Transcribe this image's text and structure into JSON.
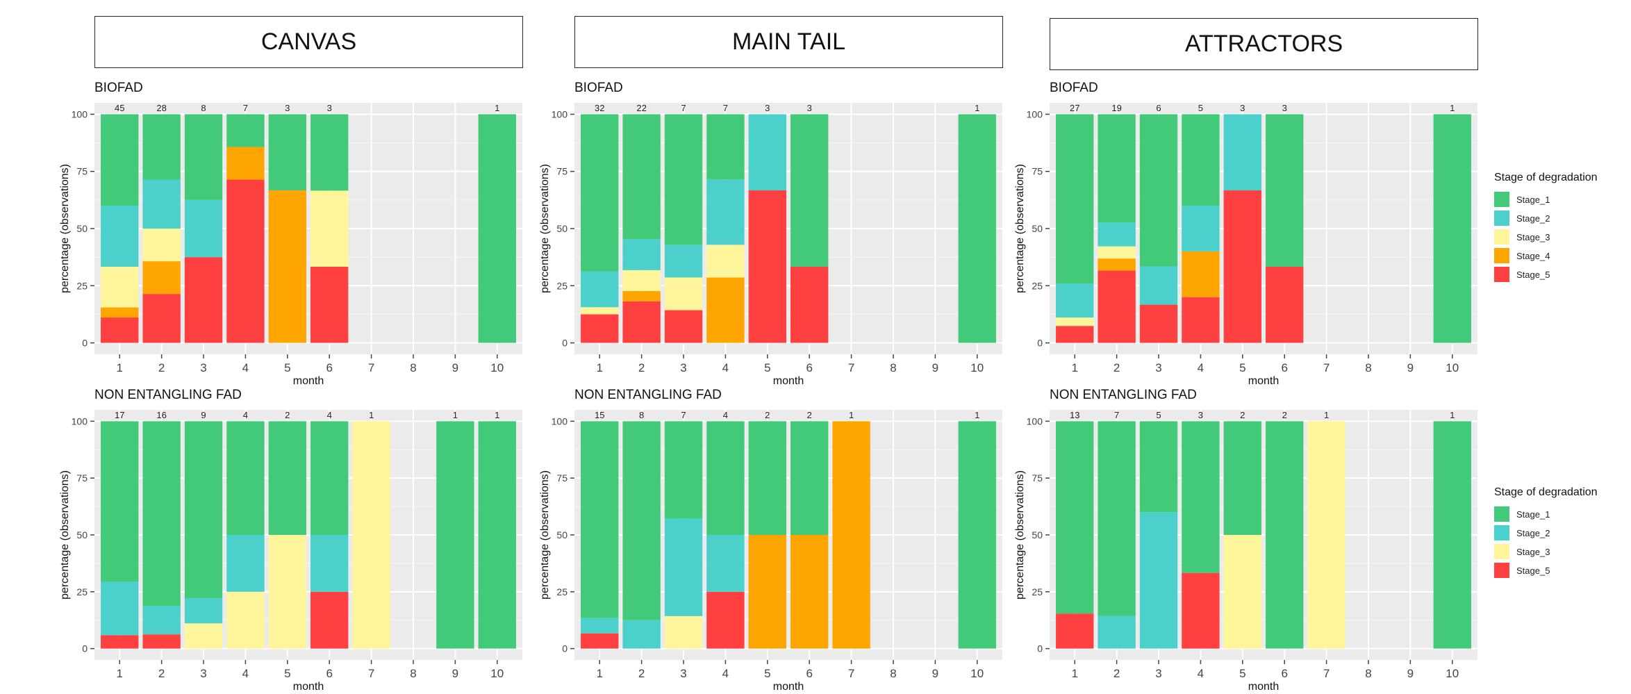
{
  "colors": {
    "Stage_1": "#43C97A",
    "Stage_2": "#4BD0CC",
    "Stage_3": "#FFF59A",
    "Stage_4": "#FFA500",
    "Stage_5": "#FF4040",
    "panel_bg": "#EBEBEB",
    "grid": "#FFFFFF"
  },
  "column_headers": [
    "CANVAS",
    "MAIN TAIL",
    "ATTRACTORS"
  ],
  "legend_top": {
    "title": "Stage of degradation",
    "items": [
      "Stage_1",
      "Stage_2",
      "Stage_3",
      "Stage_4",
      "Stage_5"
    ]
  },
  "legend_bottom": {
    "title": "Stage of degradation",
    "items": [
      "Stage_1",
      "Stage_2",
      "Stage_3",
      "Stage_5"
    ]
  },
  "chart_data": [
    {
      "type": "bar",
      "stacked": true,
      "column": "CANVAS",
      "title": "BIOFAD",
      "xlabel": "month",
      "ylabel": "percentage (observations)",
      "x_ticks": [
        1,
        2,
        3,
        4,
        5,
        6,
        7,
        8,
        9,
        10
      ],
      "y_ticks": [
        0,
        25,
        50,
        75,
        100
      ],
      "ylim": [
        0,
        100
      ],
      "stage_order": [
        "Stage_5",
        "Stage_4",
        "Stage_3",
        "Stage_2",
        "Stage_1"
      ],
      "bars": [
        {
          "month": 1,
          "count": "45",
          "values": {
            "Stage_5": 11.1,
            "Stage_4": 4.4,
            "Stage_3": 17.8,
            "Stage_2": 26.7,
            "Stage_1": 40.0
          }
        },
        {
          "month": 2,
          "count": "28",
          "values": {
            "Stage_5": 21.4,
            "Stage_4": 14.3,
            "Stage_3": 14.3,
            "Stage_2": 21.4,
            "Stage_1": 28.6
          }
        },
        {
          "month": 3,
          "count": "8",
          "values": {
            "Stage_5": 37.5,
            "Stage_2": 25.0,
            "Stage_1": 37.5
          }
        },
        {
          "month": 4,
          "count": "7",
          "values": {
            "Stage_5": 71.4,
            "Stage_4": 14.3,
            "Stage_1": 14.3
          }
        },
        {
          "month": 5,
          "count": "3",
          "values": {
            "Stage_4": 66.7,
            "Stage_1": 33.3
          }
        },
        {
          "month": 6,
          "count": "3",
          "values": {
            "Stage_5": 33.3,
            "Stage_3": 33.3,
            "Stage_1": 33.4
          }
        },
        {
          "month": 10,
          "count": "1",
          "values": {
            "Stage_1": 100
          }
        }
      ]
    },
    {
      "type": "bar",
      "stacked": true,
      "column": "MAIN TAIL",
      "title": "BIOFAD",
      "xlabel": "month",
      "ylabel": "percentage (observations)",
      "x_ticks": [
        1,
        2,
        3,
        4,
        5,
        6,
        7,
        8,
        9,
        10
      ],
      "y_ticks": [
        0,
        25,
        50,
        75,
        100
      ],
      "ylim": [
        0,
        100
      ],
      "stage_order": [
        "Stage_5",
        "Stage_4",
        "Stage_3",
        "Stage_2",
        "Stage_1"
      ],
      "bars": [
        {
          "month": 1,
          "count": "32",
          "values": {
            "Stage_5": 12.5,
            "Stage_3": 3.1,
            "Stage_2": 15.6,
            "Stage_1": 68.8
          }
        },
        {
          "month": 2,
          "count": "22",
          "values": {
            "Stage_5": 18.2,
            "Stage_4": 4.5,
            "Stage_3": 9.1,
            "Stage_2": 13.6,
            "Stage_1": 54.6
          }
        },
        {
          "month": 3,
          "count": "7",
          "values": {
            "Stage_5": 14.3,
            "Stage_3": 14.3,
            "Stage_2": 14.3,
            "Stage_1": 57.1
          }
        },
        {
          "month": 4,
          "count": "7",
          "values": {
            "Stage_4": 28.6,
            "Stage_3": 14.3,
            "Stage_2": 28.6,
            "Stage_1": 28.5
          }
        },
        {
          "month": 5,
          "count": "3",
          "values": {
            "Stage_5": 66.7,
            "Stage_2": 33.3
          }
        },
        {
          "month": 6,
          "count": "3",
          "values": {
            "Stage_5": 33.3,
            "Stage_1": 66.7
          }
        },
        {
          "month": 10,
          "count": "1",
          "values": {
            "Stage_1": 100
          }
        }
      ]
    },
    {
      "type": "bar",
      "stacked": true,
      "column": "ATTRACTORS",
      "title": "BIOFAD",
      "xlabel": "month",
      "ylabel": "percentage (observations)",
      "x_ticks": [
        1,
        2,
        3,
        4,
        5,
        6,
        7,
        8,
        9,
        10
      ],
      "y_ticks": [
        0,
        25,
        50,
        75,
        100
      ],
      "ylim": [
        0,
        100
      ],
      "stage_order": [
        "Stage_5",
        "Stage_4",
        "Stage_3",
        "Stage_2",
        "Stage_1"
      ],
      "bars": [
        {
          "month": 1,
          "count": "27",
          "values": {
            "Stage_5": 7.4,
            "Stage_3": 3.7,
            "Stage_2": 14.8,
            "Stage_1": 74.1
          }
        },
        {
          "month": 2,
          "count": "19",
          "values": {
            "Stage_5": 31.6,
            "Stage_4": 5.3,
            "Stage_3": 5.3,
            "Stage_2": 10.5,
            "Stage_1": 47.3
          }
        },
        {
          "month": 3,
          "count": "6",
          "values": {
            "Stage_5": 16.7,
            "Stage_2": 16.7,
            "Stage_1": 66.6
          }
        },
        {
          "month": 4,
          "count": "5",
          "values": {
            "Stage_5": 20.0,
            "Stage_4": 20.0,
            "Stage_2": 20.0,
            "Stage_1": 40.0
          }
        },
        {
          "month": 5,
          "count": "3",
          "values": {
            "Stage_5": 66.7,
            "Stage_2": 33.3
          }
        },
        {
          "month": 6,
          "count": "3",
          "values": {
            "Stage_5": 33.3,
            "Stage_1": 66.7
          }
        },
        {
          "month": 10,
          "count": "1",
          "values": {
            "Stage_1": 100
          }
        }
      ]
    },
    {
      "type": "bar",
      "stacked": true,
      "column": "CANVAS",
      "title": "NON ENTANGLING FAD",
      "xlabel": "month",
      "ylabel": "percentage (observations)",
      "x_ticks": [
        1,
        2,
        3,
        4,
        5,
        6,
        7,
        8,
        9,
        10
      ],
      "y_ticks": [
        0,
        25,
        50,
        75,
        100
      ],
      "ylim": [
        0,
        100
      ],
      "stage_order": [
        "Stage_5",
        "Stage_4",
        "Stage_3",
        "Stage_2",
        "Stage_1"
      ],
      "bars": [
        {
          "month": 1,
          "count": "17",
          "values": {
            "Stage_5": 5.9,
            "Stage_2": 23.5,
            "Stage_1": 70.6
          }
        },
        {
          "month": 2,
          "count": "16",
          "values": {
            "Stage_5": 6.25,
            "Stage_2": 12.5,
            "Stage_1": 81.25
          }
        },
        {
          "month": 3,
          "count": "9",
          "values": {
            "Stage_3": 11.1,
            "Stage_2": 11.1,
            "Stage_1": 77.8
          }
        },
        {
          "month": 4,
          "count": "4",
          "values": {
            "Stage_3": 25.0,
            "Stage_2": 25.0,
            "Stage_1": 50.0
          }
        },
        {
          "month": 5,
          "count": "2",
          "values": {
            "Stage_3": 50.0,
            "Stage_1": 50.0
          }
        },
        {
          "month": 6,
          "count": "4",
          "values": {
            "Stage_5": 25.0,
            "Stage_2": 25.0,
            "Stage_1": 50.0
          }
        },
        {
          "month": 7,
          "count": "1",
          "values": {
            "Stage_3": 100
          }
        },
        {
          "month": 9,
          "count": "1",
          "values": {
            "Stage_1": 100
          }
        },
        {
          "month": 10,
          "count": "1",
          "values": {
            "Stage_1": 100
          }
        }
      ]
    },
    {
      "type": "bar",
      "stacked": true,
      "column": "MAIN TAIL",
      "title": "NON ENTANGLING FAD",
      "xlabel": "month",
      "ylabel": "percentage (observations)",
      "x_ticks": [
        1,
        2,
        3,
        4,
        5,
        6,
        7,
        8,
        9,
        10
      ],
      "y_ticks": [
        0,
        25,
        50,
        75,
        100
      ],
      "ylim": [
        0,
        100
      ],
      "stage_order": [
        "Stage_5",
        "Stage_4",
        "Stage_3",
        "Stage_2",
        "Stage_1"
      ],
      "bars": [
        {
          "month": 1,
          "count": "15",
          "values": {
            "Stage_5": 6.7,
            "Stage_2": 6.7,
            "Stage_1": 86.6
          }
        },
        {
          "month": 2,
          "count": "8",
          "values": {
            "Stage_2": 12.5,
            "Stage_1": 87.5
          }
        },
        {
          "month": 3,
          "count": "7",
          "values": {
            "Stage_3": 14.3,
            "Stage_2": 42.9,
            "Stage_1": 42.8
          }
        },
        {
          "month": 4,
          "count": "4",
          "values": {
            "Stage_5": 25.0,
            "Stage_2": 25.0,
            "Stage_1": 50.0
          }
        },
        {
          "month": 5,
          "count": "2",
          "values": {
            "Stage_4": 50.0,
            "Stage_1": 50.0
          }
        },
        {
          "month": 6,
          "count": "2",
          "values": {
            "Stage_4": 50.0,
            "Stage_1": 50.0
          }
        },
        {
          "month": 7,
          "count": "1",
          "values": {
            "Stage_4": 100
          }
        },
        {
          "month": 10,
          "count": "1",
          "values": {
            "Stage_1": 100
          }
        }
      ]
    },
    {
      "type": "bar",
      "stacked": true,
      "column": "ATTRACTORS",
      "title": "NON ENTANGLING FAD",
      "xlabel": "month",
      "ylabel": "percentage (observations)",
      "x_ticks": [
        1,
        2,
        3,
        4,
        5,
        6,
        7,
        8,
        9,
        10
      ],
      "y_ticks": [
        0,
        25,
        50,
        75,
        100
      ],
      "ylim": [
        0,
        100
      ],
      "stage_order": [
        "Stage_5",
        "Stage_4",
        "Stage_3",
        "Stage_2",
        "Stage_1"
      ],
      "bars": [
        {
          "month": 1,
          "count": "13",
          "values": {
            "Stage_5": 15.4,
            "Stage_1": 84.6
          }
        },
        {
          "month": 2,
          "count": "7",
          "values": {
            "Stage_2": 14.3,
            "Stage_1": 85.7
          }
        },
        {
          "month": 3,
          "count": "5",
          "values": {
            "Stage_2": 60.0,
            "Stage_1": 40.0
          }
        },
        {
          "month": 4,
          "count": "3",
          "values": {
            "Stage_5": 33.3,
            "Stage_1": 66.7
          }
        },
        {
          "month": 5,
          "count": "2",
          "values": {
            "Stage_3": 50.0,
            "Stage_1": 50.0
          }
        },
        {
          "month": 6,
          "count": "2",
          "values": {
            "Stage_1": 100
          }
        },
        {
          "month": 7,
          "count": "1",
          "values": {
            "Stage_3": 100
          }
        },
        {
          "month": 10,
          "count": "1",
          "values": {
            "Stage_1": 100
          }
        }
      ]
    }
  ]
}
